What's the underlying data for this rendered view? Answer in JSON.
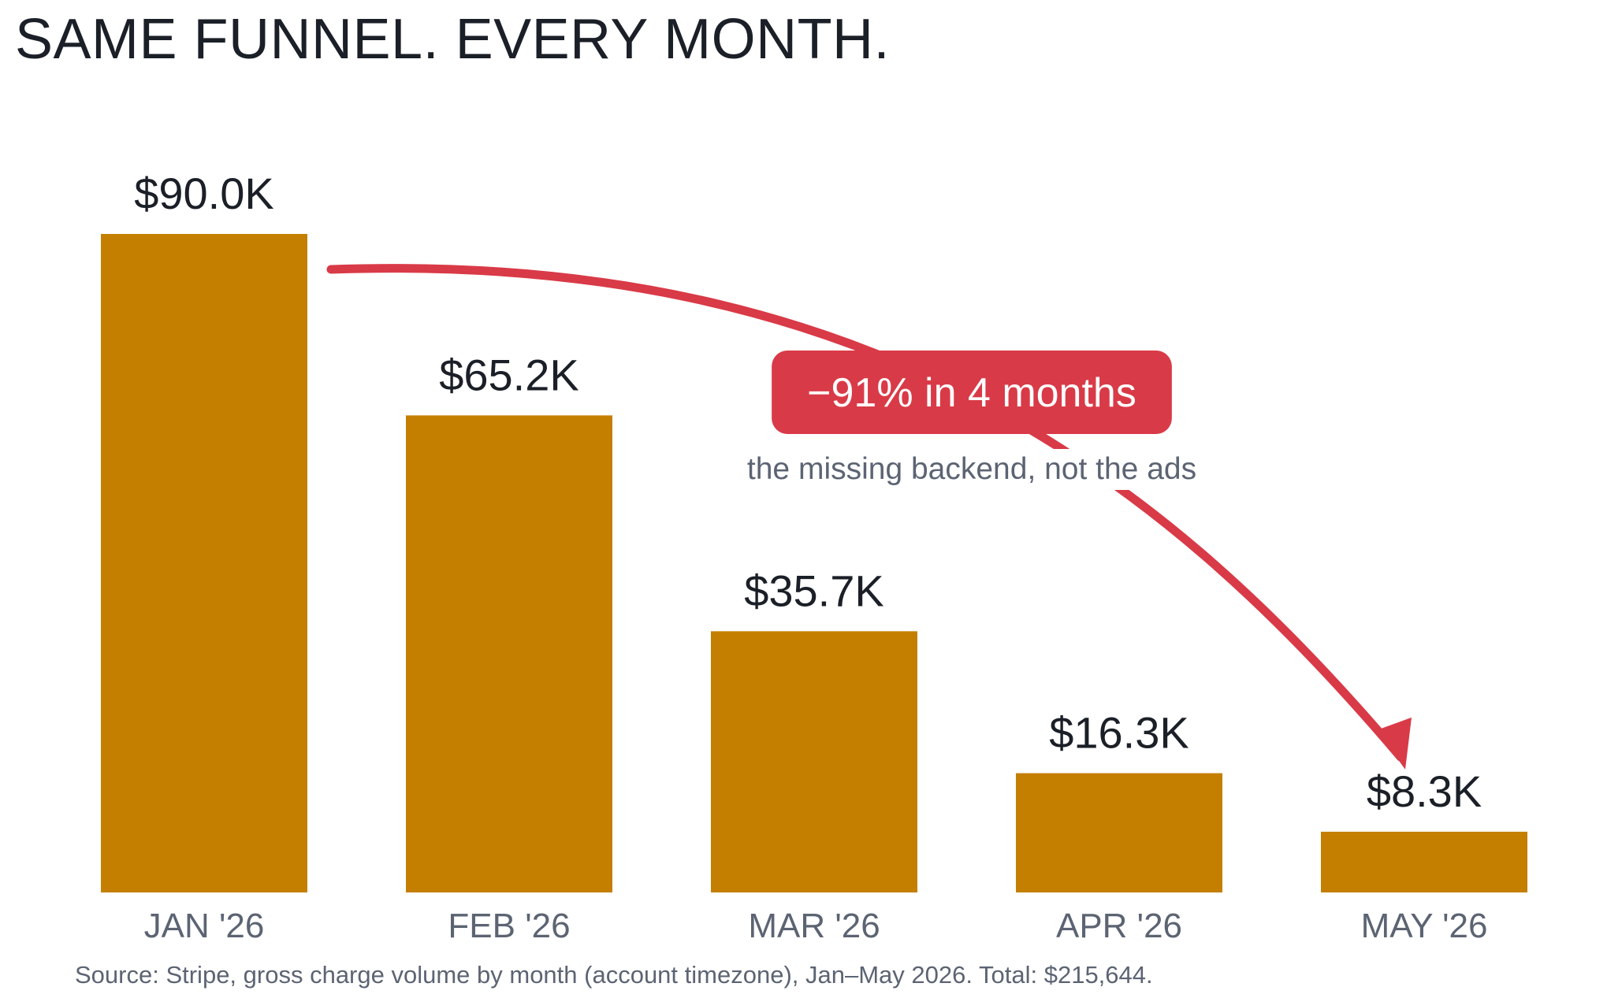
{
  "title": "SAME FUNNEL. EVERY MONTH.",
  "footnote": "Source: Stripe, gross charge volume by month (account timezone), Jan–May 2026. Total: $215,644.",
  "colors": {
    "bar": "#c47f00",
    "accent": "#d93a47",
    "title_text": "#1b1f27",
    "value_text": "#1b1f27",
    "axis_text": "#5c6473"
  },
  "chart_data": {
    "type": "bar",
    "categories": [
      "JAN '26",
      "FEB '26",
      "MAR '26",
      "APR '26",
      "MAY '26"
    ],
    "values": [
      90.0,
      65.2,
      35.7,
      16.3,
      8.3
    ],
    "value_labels": [
      "$90.0K",
      "$65.2K",
      "$35.7K",
      "$16.3K",
      "$8.3K"
    ],
    "ylim": [
      0,
      90
    ],
    "grid": false,
    "legend": "none",
    "annotation": {
      "badge": "−91% in 4 months",
      "note": "the missing backend, not the ads",
      "from_category": "JAN '26",
      "to_category": "MAY '26"
    }
  }
}
